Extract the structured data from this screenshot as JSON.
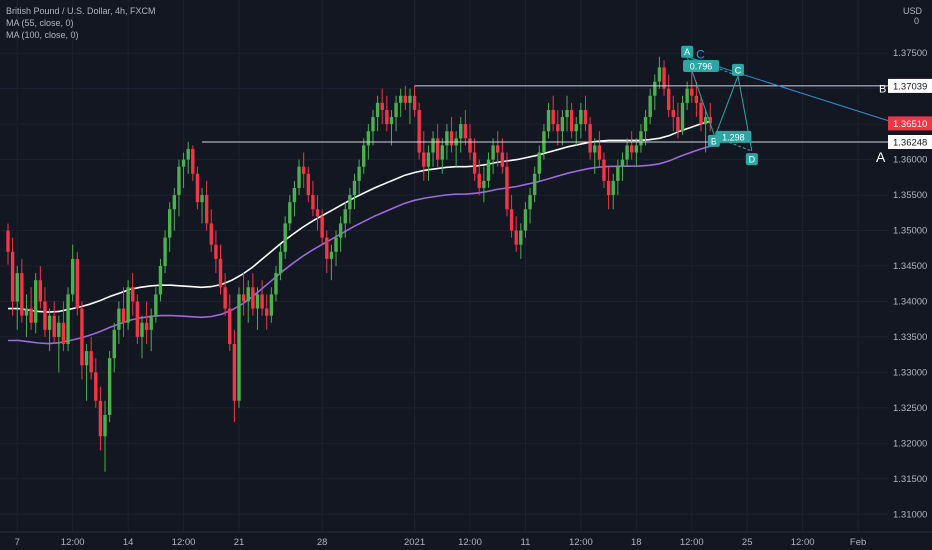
{
  "legend": {
    "title": "British Pound / U.S. Dollar, 4h, FXCM",
    "ma1": "MA (55, close, 0)",
    "ma2": "MA (100, close, 0)"
  },
  "colors": {
    "background": "#131722",
    "up": "#4caf50",
    "down": "#f23645",
    "ma55": "#ffffff",
    "ma100": "#9c6ade",
    "pattern": "#2ba6a5",
    "trendline": "#2f8fd6",
    "price_badge": "#f23645"
  },
  "chart_data": {
    "type": "candlestick",
    "symbol": "GBPUSD",
    "timeframe": "4h",
    "currency": "USD",
    "currency_marker": "0",
    "ylim": [
      1.3075,
      1.3825
    ],
    "y_ticks": [
      "1.37500",
      "1.37000",
      "1.36500",
      "1.36000",
      "1.35500",
      "1.35000",
      "1.34500",
      "1.34000",
      "1.33500",
      "1.33000",
      "1.32500",
      "1.32000",
      "1.31500",
      "1.31000"
    ],
    "x_ticks": [
      {
        "label": "7",
        "i": 2
      },
      {
        "label": "12:00",
        "i": 14
      },
      {
        "label": "14",
        "i": 26
      },
      {
        "label": "12:00",
        "i": 38
      },
      {
        "label": "21",
        "i": 50
      },
      {
        "label": "28",
        "i": 68
      },
      {
        "label": "2021",
        "i": 88
      },
      {
        "label": "12:00",
        "i": 100
      },
      {
        "label": "11",
        "i": 112
      },
      {
        "label": "12:00",
        "i": 124
      },
      {
        "label": "18",
        "i": 136
      },
      {
        "label": "12:00",
        "i": 148
      },
      {
        "label": "25",
        "i": 160
      },
      {
        "label": "12:00",
        "i": 172
      },
      {
        "label": "Feb",
        "i": 184
      }
    ],
    "ohlc": [
      [
        1.35,
        1.351,
        1.3452,
        1.347
      ],
      [
        1.347,
        1.349,
        1.338,
        1.34
      ],
      [
        1.34,
        1.345,
        1.336,
        1.344
      ],
      [
        1.344,
        1.346,
        1.337,
        1.338
      ],
      [
        1.338,
        1.341,
        1.335,
        1.339
      ],
      [
        1.339,
        1.342,
        1.336,
        1.337
      ],
      [
        1.337,
        1.344,
        1.3355,
        1.343
      ],
      [
        1.343,
        1.345,
        1.339,
        1.34
      ],
      [
        1.34,
        1.342,
        1.335,
        1.336
      ],
      [
        1.336,
        1.339,
        1.333,
        1.338
      ],
      [
        1.338,
        1.34,
        1.334,
        1.335
      ],
      [
        1.335,
        1.338,
        1.33,
        1.337
      ],
      [
        1.337,
        1.34,
        1.333,
        1.334
      ],
      [
        1.334,
        1.342,
        1.333,
        1.341
      ],
      [
        1.341,
        1.348,
        1.34,
        1.346
      ],
      [
        1.346,
        1.347,
        1.338,
        1.339
      ],
      [
        1.339,
        1.34,
        1.329,
        1.331
      ],
      [
        1.331,
        1.334,
        1.326,
        1.333
      ],
      [
        1.333,
        1.335,
        1.329,
        1.33
      ],
      [
        1.33,
        1.332,
        1.325,
        1.326
      ],
      [
        1.326,
        1.328,
        1.319,
        1.321
      ],
      [
        1.321,
        1.326,
        1.316,
        1.324
      ],
      [
        1.324,
        1.333,
        1.323,
        1.332
      ],
      [
        1.332,
        1.337,
        1.33,
        1.336
      ],
      [
        1.336,
        1.34,
        1.334,
        1.339
      ],
      [
        1.339,
        1.342,
        1.335,
        1.337
      ],
      [
        1.337,
        1.343,
        1.336,
        1.342
      ],
      [
        1.342,
        1.344,
        1.338,
        1.34
      ],
      [
        1.34,
        1.341,
        1.334,
        1.335
      ],
      [
        1.335,
        1.338,
        1.332,
        1.337
      ],
      [
        1.337,
        1.34,
        1.334,
        1.336
      ],
      [
        1.336,
        1.339,
        1.333,
        1.338
      ],
      [
        1.338,
        1.342,
        1.337,
        1.341
      ],
      [
        1.341,
        1.346,
        1.34,
        1.345
      ],
      [
        1.345,
        1.35,
        1.344,
        1.349
      ],
      [
        1.349,
        1.354,
        1.347,
        1.353
      ],
      [
        1.353,
        1.356,
        1.35,
        1.355
      ],
      [
        1.355,
        1.36,
        1.352,
        1.359
      ],
      [
        1.359,
        1.361,
        1.356,
        1.36
      ],
      [
        1.36,
        1.3625,
        1.358,
        1.3615
      ],
      [
        1.3615,
        1.362,
        1.357,
        1.358
      ],
      [
        1.358,
        1.359,
        1.353,
        1.354
      ],
      [
        1.354,
        1.356,
        1.351,
        1.355
      ],
      [
        1.355,
        1.357,
        1.35,
        1.351
      ],
      [
        1.351,
        1.353,
        1.347,
        1.348
      ],
      [
        1.348,
        1.35,
        1.344,
        1.346
      ],
      [
        1.346,
        1.348,
        1.341,
        1.342
      ],
      [
        1.342,
        1.344,
        1.338,
        1.339
      ],
      [
        1.339,
        1.341,
        1.333,
        1.334
      ],
      [
        1.334,
        1.336,
        1.323,
        1.326
      ],
      [
        1.326,
        1.342,
        1.325,
        1.341
      ],
      [
        1.341,
        1.344,
        1.338,
        1.34
      ],
      [
        1.34,
        1.343,
        1.337,
        1.342
      ],
      [
        1.342,
        1.344,
        1.338,
        1.339
      ],
      [
        1.339,
        1.342,
        1.336,
        1.341
      ],
      [
        1.341,
        1.343,
        1.338,
        1.339
      ],
      [
        1.339,
        1.341,
        1.336,
        1.338
      ],
      [
        1.338,
        1.342,
        1.337,
        1.341
      ],
      [
        1.341,
        1.345,
        1.34,
        1.344
      ],
      [
        1.344,
        1.348,
        1.343,
        1.347
      ],
      [
        1.347,
        1.352,
        1.346,
        1.351
      ],
      [
        1.351,
        1.355,
        1.35,
        1.354
      ],
      [
        1.354,
        1.357,
        1.352,
        1.356
      ],
      [
        1.356,
        1.36,
        1.355,
        1.359
      ],
      [
        1.359,
        1.361,
        1.356,
        1.358
      ],
      [
        1.358,
        1.359,
        1.354,
        1.355
      ],
      [
        1.355,
        1.357,
        1.352,
        1.353
      ],
      [
        1.353,
        1.355,
        1.35,
        1.352
      ],
      [
        1.352,
        1.353,
        1.348,
        1.349
      ],
      [
        1.349,
        1.35,
        1.344,
        1.346
      ],
      [
        1.346,
        1.348,
        1.343,
        1.347
      ],
      [
        1.347,
        1.35,
        1.345,
        1.349
      ],
      [
        1.349,
        1.352,
        1.347,
        1.351
      ],
      [
        1.351,
        1.354,
        1.349,
        1.353
      ],
      [
        1.353,
        1.356,
        1.351,
        1.355
      ],
      [
        1.355,
        1.358,
        1.353,
        1.357
      ],
      [
        1.357,
        1.36,
        1.355,
        1.359
      ],
      [
        1.359,
        1.363,
        1.358,
        1.362
      ],
      [
        1.362,
        1.365,
        1.36,
        1.364
      ],
      [
        1.364,
        1.367,
        1.362,
        1.366
      ],
      [
        1.366,
        1.369,
        1.364,
        1.368
      ],
      [
        1.368,
        1.37,
        1.365,
        1.367
      ],
      [
        1.367,
        1.369,
        1.364,
        1.365
      ],
      [
        1.365,
        1.367,
        1.362,
        1.366
      ],
      [
        1.366,
        1.369,
        1.364,
        1.368
      ],
      [
        1.368,
        1.37,
        1.366,
        1.369
      ],
      [
        1.369,
        1.3704,
        1.367,
        1.368
      ],
      [
        1.368,
        1.37,
        1.365,
        1.369
      ],
      [
        1.369,
        1.3704,
        1.366,
        1.367
      ],
      [
        1.367,
        1.368,
        1.36,
        1.361
      ],
      [
        1.361,
        1.364,
        1.357,
        1.359
      ],
      [
        1.359,
        1.362,
        1.357,
        1.361
      ],
      [
        1.361,
        1.364,
        1.359,
        1.363
      ],
      [
        1.363,
        1.365,
        1.359,
        1.36
      ],
      [
        1.36,
        1.363,
        1.358,
        1.362
      ],
      [
        1.362,
        1.365,
        1.36,
        1.364
      ],
      [
        1.364,
        1.366,
        1.361,
        1.362
      ],
      [
        1.362,
        1.364,
        1.359,
        1.363
      ],
      [
        1.363,
        1.366,
        1.361,
        1.365
      ],
      [
        1.365,
        1.367,
        1.362,
        1.363
      ],
      [
        1.363,
        1.365,
        1.36,
        1.361
      ],
      [
        1.361,
        1.363,
        1.357,
        1.358
      ],
      [
        1.358,
        1.36,
        1.355,
        1.356
      ],
      [
        1.356,
        1.359,
        1.354,
        1.357
      ],
      [
        1.357,
        1.361,
        1.356,
        1.36
      ],
      [
        1.36,
        1.363,
        1.358,
        1.362
      ],
      [
        1.362,
        1.364,
        1.359,
        1.361
      ],
      [
        1.361,
        1.363,
        1.358,
        1.359
      ],
      [
        1.359,
        1.361,
        1.352,
        1.353
      ],
      [
        1.353,
        1.355,
        1.349,
        1.35
      ],
      [
        1.35,
        1.352,
        1.347,
        1.348
      ],
      [
        1.348,
        1.351,
        1.346,
        1.35
      ],
      [
        1.35,
        1.354,
        1.349,
        1.353
      ],
      [
        1.353,
        1.356,
        1.351,
        1.355
      ],
      [
        1.355,
        1.359,
        1.354,
        1.358
      ],
      [
        1.358,
        1.362,
        1.357,
        1.361
      ],
      [
        1.361,
        1.365,
        1.36,
        1.364
      ],
      [
        1.364,
        1.368,
        1.363,
        1.367
      ],
      [
        1.367,
        1.369,
        1.364,
        1.365
      ],
      [
        1.365,
        1.367,
        1.362,
        1.364
      ],
      [
        1.364,
        1.367,
        1.362,
        1.366
      ],
      [
        1.366,
        1.369,
        1.364,
        1.367
      ],
      [
        1.367,
        1.368,
        1.363,
        1.364
      ],
      [
        1.364,
        1.366,
        1.362,
        1.365
      ],
      [
        1.365,
        1.368,
        1.363,
        1.367
      ],
      [
        1.367,
        1.369,
        1.364,
        1.365
      ],
      [
        1.365,
        1.366,
        1.36,
        1.361
      ],
      [
        1.361,
        1.363,
        1.358,
        1.362
      ],
      [
        1.362,
        1.364,
        1.359,
        1.36
      ],
      [
        1.36,
        1.361,
        1.356,
        1.357
      ],
      [
        1.357,
        1.359,
        1.353,
        1.355
      ],
      [
        1.355,
        1.358,
        1.353,
        1.357
      ],
      [
        1.357,
        1.36,
        1.355,
        1.359
      ],
      [
        1.359,
        1.361,
        1.357,
        1.36
      ],
      [
        1.36,
        1.363,
        1.359,
        1.362
      ],
      [
        1.362,
        1.364,
        1.36,
        1.361
      ],
      [
        1.361,
        1.363,
        1.359,
        1.362
      ],
      [
        1.362,
        1.365,
        1.361,
        1.364
      ],
      [
        1.364,
        1.367,
        1.362,
        1.366
      ],
      [
        1.366,
        1.37,
        1.365,
        1.369
      ],
      [
        1.369,
        1.372,
        1.367,
        1.371
      ],
      [
        1.371,
        1.3745,
        1.37,
        1.373
      ],
      [
        1.373,
        1.374,
        1.369,
        1.37
      ],
      [
        1.37,
        1.372,
        1.366,
        1.367
      ],
      [
        1.367,
        1.369,
        1.364,
        1.366
      ],
      [
        1.366,
        1.368,
        1.363,
        1.364
      ],
      [
        1.364,
        1.369,
        1.3635,
        1.368
      ],
      [
        1.368,
        1.371,
        1.367,
        1.37
      ],
      [
        1.37,
        1.373,
        1.368,
        1.369
      ],
      [
        1.369,
        1.371,
        1.366,
        1.368
      ],
      [
        1.368,
        1.369,
        1.364,
        1.365
      ],
      [
        1.365,
        1.367,
        1.361,
        1.366
      ],
      [
        1.366,
        1.368,
        1.364,
        1.3651
      ]
    ],
    "ma55": {
      "name": "MA (55, close, 0)",
      "values": [
        1.339,
        1.339,
        1.3388,
        1.3386,
        1.3385,
        1.3386,
        1.3389,
        1.3392,
        1.3396,
        1.3401,
        1.3407,
        1.3412,
        1.3417,
        1.342,
        1.3422,
        1.3423,
        1.3423,
        1.3422,
        1.3421,
        1.342,
        1.3421,
        1.3424,
        1.343,
        1.3438,
        1.3448,
        1.346,
        1.3472,
        1.3484,
        1.3495,
        1.3505,
        1.3514,
        1.3522,
        1.353,
        1.3538,
        1.3546,
        1.3553,
        1.356,
        1.3566,
        1.3572,
        1.3578,
        1.3582,
        1.3585,
        1.3587,
        1.3589,
        1.359,
        1.359,
        1.3591,
        1.3593,
        1.3596,
        1.3598,
        1.36,
        1.3603,
        1.3606,
        1.361,
        1.3614,
        1.3618,
        1.3621,
        1.3624,
        1.3626,
        1.3627,
        1.3627,
        1.3627,
        1.3627,
        1.3628,
        1.363,
        1.3634,
        1.364,
        1.3645,
        1.365,
        1.3654
      ]
    }
  }
}
